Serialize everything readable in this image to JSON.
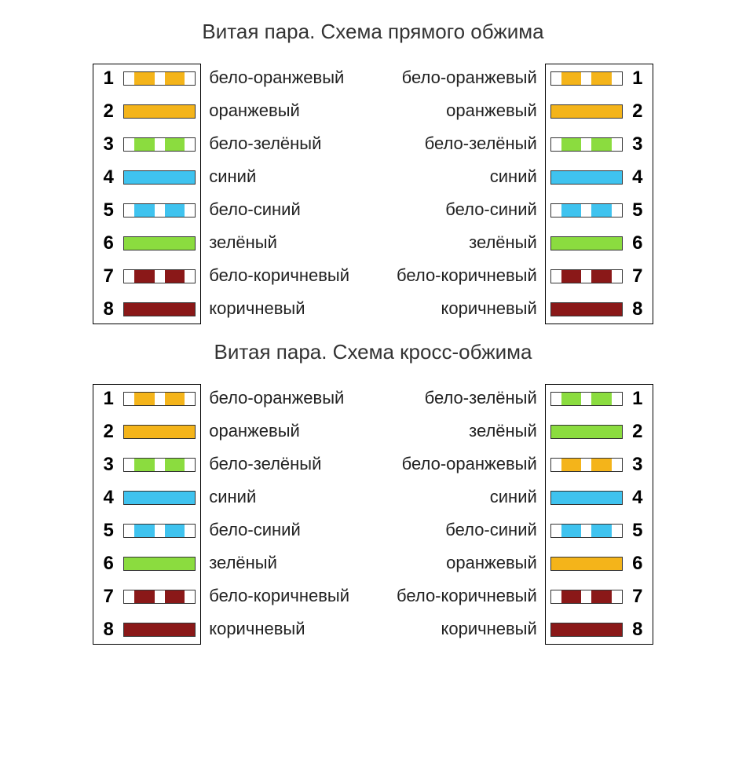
{
  "colors": {
    "orange": "#f4b41a",
    "green": "#8bdc3f",
    "blue": "#3fc3ef",
    "brown": "#8a1818",
    "white": "#ffffff",
    "border": "#333333"
  },
  "wires": {
    "white-orange": {
      "striped": true,
      "stripe": "#f4b41a",
      "base": "#ffffff"
    },
    "orange": {
      "striped": false,
      "solid": "#f4b41a"
    },
    "white-green": {
      "striped": true,
      "stripe": "#8bdc3f",
      "base": "#ffffff"
    },
    "blue": {
      "striped": false,
      "solid": "#3fc3ef"
    },
    "white-blue": {
      "striped": true,
      "stripe": "#3fc3ef",
      "base": "#ffffff"
    },
    "green": {
      "striped": false,
      "solid": "#8bdc3f"
    },
    "white-brown": {
      "striped": true,
      "stripe": "#8a1818",
      "base": "#ffffff"
    },
    "brown": {
      "striped": false,
      "solid": "#8a1818"
    }
  },
  "diagrams": [
    {
      "title": "Витая пара. Схема прямого обжима",
      "left": [
        {
          "pin": 1,
          "wire": "white-orange",
          "label": "бело-оранжевый"
        },
        {
          "pin": 2,
          "wire": "orange",
          "label": "оранжевый"
        },
        {
          "pin": 3,
          "wire": "white-green",
          "label": "бело-зелёный"
        },
        {
          "pin": 4,
          "wire": "blue",
          "label": "синий"
        },
        {
          "pin": 5,
          "wire": "white-blue",
          "label": "бело-синий"
        },
        {
          "pin": 6,
          "wire": "green",
          "label": "зелёный"
        },
        {
          "pin": 7,
          "wire": "white-brown",
          "label": "бело-коричневый"
        },
        {
          "pin": 8,
          "wire": "brown",
          "label": "коричневый"
        }
      ],
      "right": [
        {
          "pin": 1,
          "wire": "white-orange",
          "label": "бело-оранжевый"
        },
        {
          "pin": 2,
          "wire": "orange",
          "label": "оранжевый"
        },
        {
          "pin": 3,
          "wire": "white-green",
          "label": "бело-зелёный"
        },
        {
          "pin": 4,
          "wire": "blue",
          "label": "синий"
        },
        {
          "pin": 5,
          "wire": "white-blue",
          "label": "бело-синий"
        },
        {
          "pin": 6,
          "wire": "green",
          "label": "зелёный"
        },
        {
          "pin": 7,
          "wire": "white-brown",
          "label": "бело-коричневый"
        },
        {
          "pin": 8,
          "wire": "brown",
          "label": "коричневый"
        }
      ]
    },
    {
      "title": "Витая пара. Схема кросс-обжима",
      "left": [
        {
          "pin": 1,
          "wire": "white-orange",
          "label": "бело-оранжевый"
        },
        {
          "pin": 2,
          "wire": "orange",
          "label": "оранжевый"
        },
        {
          "pin": 3,
          "wire": "white-green",
          "label": "бело-зелёный"
        },
        {
          "pin": 4,
          "wire": "blue",
          "label": "синий"
        },
        {
          "pin": 5,
          "wire": "white-blue",
          "label": "бело-синий"
        },
        {
          "pin": 6,
          "wire": "green",
          "label": "зелёный"
        },
        {
          "pin": 7,
          "wire": "white-brown",
          "label": "бело-коричневый"
        },
        {
          "pin": 8,
          "wire": "brown",
          "label": "коричневый"
        }
      ],
      "right": [
        {
          "pin": 1,
          "wire": "white-green",
          "label": "бело-зелёный"
        },
        {
          "pin": 2,
          "wire": "green",
          "label": "зелёный"
        },
        {
          "pin": 3,
          "wire": "white-orange",
          "label": "бело-оранжевый"
        },
        {
          "pin": 4,
          "wire": "blue",
          "label": "синий"
        },
        {
          "pin": 5,
          "wire": "white-blue",
          "label": "бело-синий"
        },
        {
          "pin": 6,
          "wire": "orange",
          "label": "оранжевый"
        },
        {
          "pin": 7,
          "wire": "white-brown",
          "label": "бело-коричневый"
        },
        {
          "pin": 8,
          "wire": "brown",
          "label": "коричневый"
        }
      ]
    }
  ]
}
